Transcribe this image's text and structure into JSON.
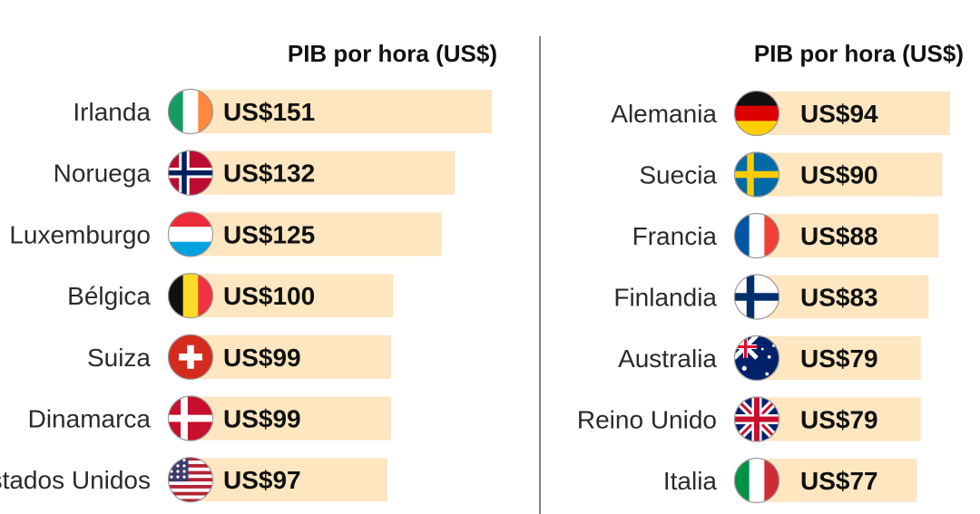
{
  "chart_data": [
    {
      "type": "bar",
      "title": "PIB por hora (US$)",
      "categories": [
        "Irlanda",
        "Noruega",
        "Luxemburgo",
        "Bélgica",
        "Suiza",
        "Dinamarca",
        "Estados Unidos"
      ],
      "values": [
        151,
        132,
        125,
        100,
        99,
        99,
        97
      ],
      "value_labels": [
        "US$151",
        "US$132",
        "US$125",
        "US$100",
        "US$99",
        "US$99",
        "US$97"
      ],
      "flags": [
        "ireland-flag",
        "norway-flag",
        "luxembourg-flag",
        "belgium-flag",
        "switzerland-flag",
        "denmark-flag",
        "usa-flag"
      ],
      "bar_color": "#fde6c0"
    },
    {
      "type": "bar",
      "title": "PIB por hora (US$)",
      "categories": [
        "Alemania",
        "Suecia",
        "Francia",
        "Finlandia",
        "Australia",
        "Reino Unido",
        "Italia"
      ],
      "values": [
        94,
        90,
        88,
        83,
        79,
        79,
        77
      ],
      "value_labels": [
        "US$94",
        "US$90",
        "US$88",
        "US$83",
        "US$79",
        "US$79",
        "US$77"
      ],
      "flags": [
        "germany-flag",
        "sweden-flag",
        "france-flag",
        "finland-flag",
        "australia-flag",
        "uk-flag",
        "italy-flag"
      ],
      "bar_color": "#fde6c0"
    }
  ]
}
